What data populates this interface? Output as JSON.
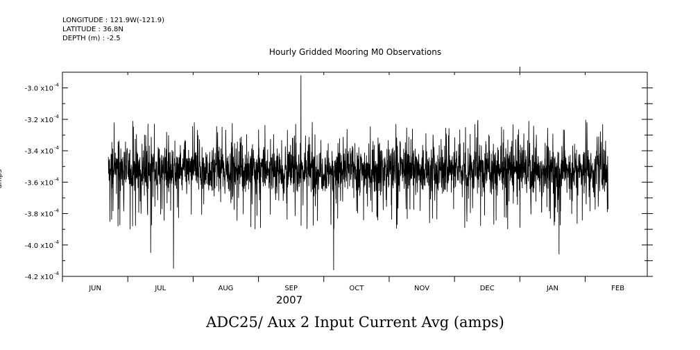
{
  "header": {
    "longitude": "LONGITUDE : 121.9W(-121.9)",
    "latitude": "LATITUDE : 36.8N",
    "depth": "DEPTH (m) : -2.5"
  },
  "chart_data": {
    "type": "line",
    "title": "Hourly Gridded Mooring M0 Observations",
    "xlabel": "ADC25/ Aux 2 Input Current Avg (amps)",
    "x_year_label": "2007",
    "ylabel": "amps",
    "ylim": [
      -0.00042,
      -0.00029
    ],
    "y_ticks": [
      {
        "value": -0.0003,
        "mantissa": "-3.0",
        "exp": "-4"
      },
      {
        "value": -0.00032,
        "mantissa": "-3.2",
        "exp": "-4"
      },
      {
        "value": -0.00034,
        "mantissa": "-3.4",
        "exp": "-4"
      },
      {
        "value": -0.00036,
        "mantissa": "-3.6",
        "exp": "-4"
      },
      {
        "value": -0.00038,
        "mantissa": "-3.8",
        "exp": "-4"
      },
      {
        "value": -0.0004,
        "mantissa": "-4.0",
        "exp": "-4"
      },
      {
        "value": -0.00042,
        "mantissa": "-4.2",
        "exp": "-4"
      }
    ],
    "x_range_months": [
      0.0,
      8.95
    ],
    "x_ticks": [
      "JUN",
      "JUL",
      "AUG",
      "SEP",
      "OCT",
      "NOV",
      "DEC",
      "JAN",
      "FEB"
    ],
    "series": [
      {
        "name": "",
        "x_start_month": 0.7,
        "x_end_month": 8.35,
        "baseline": -0.000352,
        "upper_envelope": -0.00034,
        "lower_envelope": -0.000364,
        "typical_max": -0.00032,
        "typical_min": -0.00039,
        "extremes": [
          {
            "month": 3.65,
            "value": -0.000292
          },
          {
            "month": 4.15,
            "value": -0.000416
          },
          {
            "month": 1.7,
            "value": -0.000415
          },
          {
            "month": 1.35,
            "value": -0.000405
          },
          {
            "month": 7.6,
            "value": -0.000406
          }
        ]
      }
    ]
  }
}
